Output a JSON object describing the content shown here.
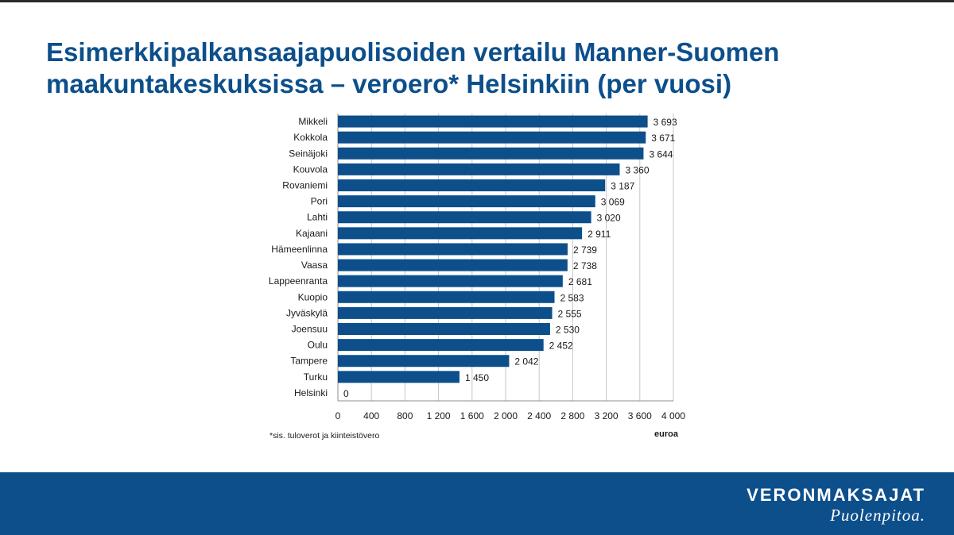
{
  "title": "Esimerkkipalkansaajapuolisoiden vertailu Manner-Suomen maakuntakeskuksissa – veroero* Helsinkiin (per vuosi)",
  "footnote": "*sis. tuloverot ja kiinteistövero",
  "brand": {
    "name": "VERONMAKSAJAT",
    "slogan": "Puolenpitoa."
  },
  "colors": {
    "bar": "#0d4f8b",
    "title": "#0d4f8b",
    "footer": "#0d4f8b"
  },
  "chart_data": {
    "type": "bar",
    "orientation": "horizontal",
    "categories": [
      "Mikkeli",
      "Kokkola",
      "Seinäjoki",
      "Kouvola",
      "Rovaniemi",
      "Pori",
      "Lahti",
      "Kajaani",
      "Hämeenlinna",
      "Vaasa",
      "Lappeenranta",
      "Kuopio",
      "Jyväskylä",
      "Joensuu",
      "Oulu",
      "Tampere",
      "Turku",
      "Helsinki"
    ],
    "values": [
      3693,
      3671,
      3644,
      3360,
      3187,
      3069,
      3020,
      2911,
      2739,
      2738,
      2681,
      2583,
      2555,
      2530,
      2452,
      2042,
      1450,
      0
    ],
    "value_labels": [
      "3 693",
      "3 671",
      "3 644",
      "3 360",
      "3 187",
      "3 069",
      "3 020",
      "2 911",
      "2 739",
      "2 738",
      "2 681",
      "2 583",
      "2 555",
      "2 530",
      "2 452",
      "2 042",
      "1 450",
      "0"
    ],
    "xlabel": "euroa",
    "xlim": [
      0,
      4000
    ],
    "xticks": [
      0,
      400,
      800,
      1200,
      1600,
      2000,
      2400,
      2800,
      3200,
      3600,
      4000
    ],
    "xtick_labels": [
      "0",
      "400",
      "800",
      "1 200",
      "1 600",
      "2 000",
      "2 400",
      "2 800",
      "3 200",
      "3 600",
      "4 000"
    ],
    "grid": true
  }
}
